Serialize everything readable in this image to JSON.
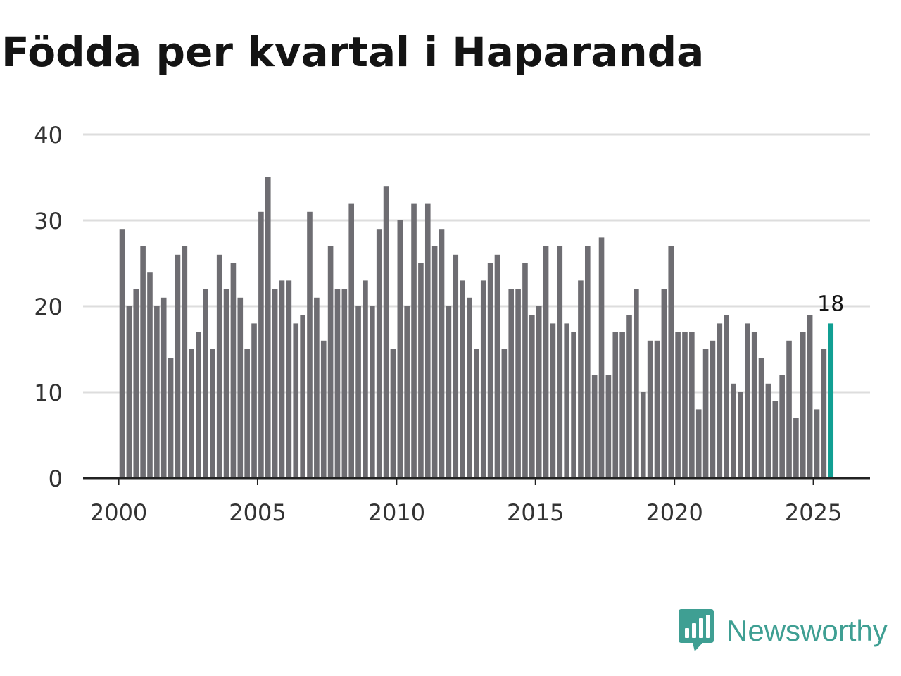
{
  "chart_data": {
    "type": "bar",
    "title": "Födda per kvartal i Haparanda",
    "xlabel": "",
    "ylabel": "",
    "ylim": [
      0,
      40
    ],
    "yticks": [
      0,
      10,
      20,
      30,
      40
    ],
    "xticks": [
      "2000",
      "2005",
      "2010",
      "2015",
      "2020",
      "2025"
    ],
    "start_year": 2000,
    "periods_per_year": 4,
    "grid": true,
    "values": [
      29,
      20,
      22,
      27,
      24,
      20,
      21,
      14,
      26,
      27,
      15,
      17,
      22,
      15,
      26,
      22,
      25,
      21,
      15,
      18,
      31,
      35,
      22,
      23,
      23,
      18,
      19,
      31,
      21,
      16,
      27,
      22,
      22,
      32,
      20,
      23,
      20,
      29,
      34,
      15,
      30,
      20,
      32,
      25,
      32,
      27,
      29,
      20,
      26,
      23,
      21,
      15,
      23,
      25,
      26,
      15,
      22,
      22,
      25,
      19,
      20,
      27,
      18,
      27,
      18,
      17,
      23,
      27,
      12,
      28,
      12,
      17,
      17,
      19,
      22,
      10,
      16,
      16,
      22,
      27,
      17,
      17,
      17,
      8,
      15,
      16,
      18,
      19,
      11,
      10,
      18,
      17,
      14,
      11,
      9,
      12,
      16,
      7,
      17,
      19,
      8,
      15,
      18
    ],
    "highlight_last": true,
    "last_value_label": "18",
    "bar_color": "#6e6d72",
    "highlight_color": "#119f93",
    "grid_color": "#dddddd",
    "axis_color": "#222222"
  },
  "brand": {
    "name": "Newsworthy",
    "color": "#3f9f93"
  }
}
